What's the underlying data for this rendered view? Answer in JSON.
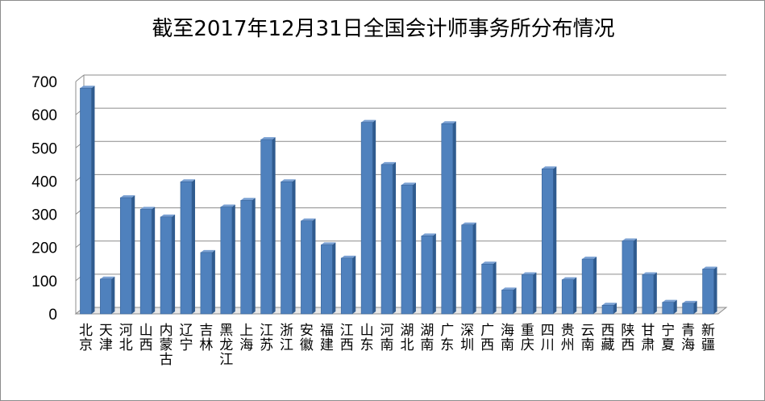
{
  "chart_data": {
    "type": "bar",
    "title": "截至2017年12月31日全国会计师事务所分布情况",
    "xlabel": "",
    "ylabel": "",
    "ylim": [
      0,
      700
    ],
    "yticks": [
      0,
      100,
      200,
      300,
      400,
      500,
      600,
      700
    ],
    "grid": true,
    "legend": "none",
    "style": "3d-bar",
    "bar_color": "#4F81BD",
    "categories": [
      "北京",
      "天津",
      "河北",
      "山西",
      "内蒙古",
      "辽宁",
      "吉林",
      "黑龙江",
      "上海",
      "江苏",
      "浙江",
      "安徽",
      "福建",
      "江西",
      "山东",
      "河南",
      "湖北",
      "湖南",
      "广东",
      "深圳",
      "广西",
      "海南",
      "重庆",
      "四川",
      "贵州",
      "云南",
      "西藏",
      "陕西",
      "甘肃",
      "宁夏",
      "青海",
      "新疆"
    ],
    "values": [
      680,
      105,
      350,
      315,
      292,
      398,
      185,
      322,
      342,
      525,
      398,
      280,
      208,
      168,
      577,
      450,
      388,
      235,
      573,
      268,
      150,
      72,
      118,
      437,
      103,
      165,
      26,
      220,
      118,
      35,
      32,
      135
    ]
  }
}
